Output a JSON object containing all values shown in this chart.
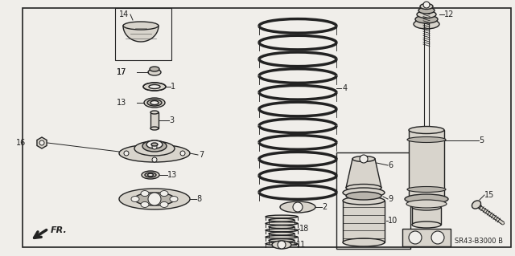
{
  "bg": "#f0eeea",
  "lc": "#222222",
  "pf": "#d8d4cc",
  "pf2": "#b8b4ac",
  "watermark": "SR43-B3000 B",
  "figw": 6.4,
  "figh": 3.19,
  "dpi": 100
}
